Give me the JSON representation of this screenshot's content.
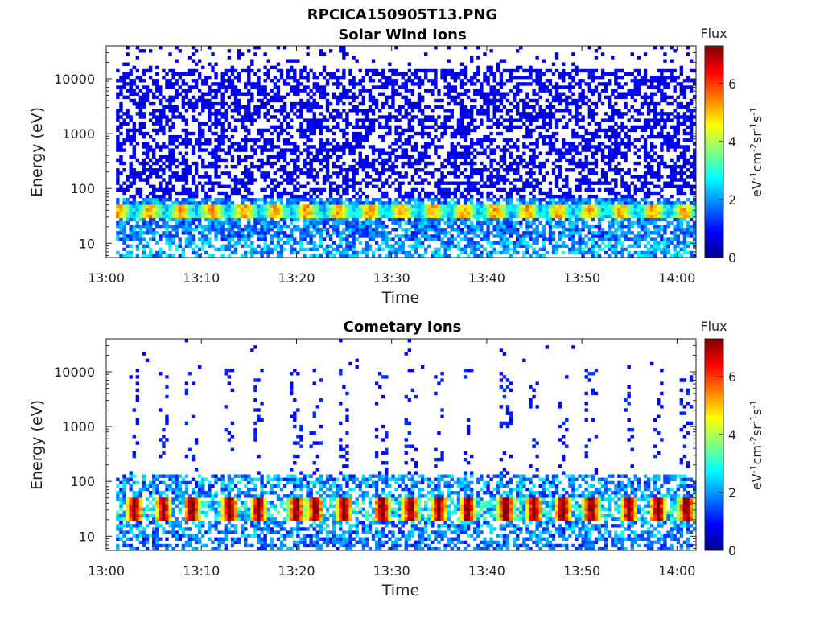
{
  "figure": {
    "title": "RPCICA150905T13.PNG"
  },
  "chart_data": [
    {
      "type": "heatmap",
      "title": "Solar Wind Ions",
      "xlabel": "Time",
      "ylabel": "Energy (eV)",
      "x_range": [
        "13:00",
        "14:02"
      ],
      "x_ticks": [
        "13:00",
        "13:10",
        "13:20",
        "13:30",
        "13:40",
        "13:50",
        "14:00"
      ],
      "y_scale": "log",
      "y_range": [
        5.5,
        40000
      ],
      "y_ticks": [
        10,
        100,
        1000,
        10000
      ],
      "y_tick_labels": [
        "10",
        "100",
        "1000",
        "10000"
      ],
      "colorbar": {
        "title": "Flux",
        "label": "eV-1cm-2sr-1s-1",
        "range": [
          0,
          7.3
        ],
        "ticks": [
          0,
          2,
          4,
          6
        ],
        "tick_labels": [
          "0",
          "2",
          "4",
          "6"
        ],
        "colormap": "jet"
      },
      "data_start": "13:01",
      "band_energy_eV": 38,
      "band_peak_flux": 5,
      "background_flux": 1
    },
    {
      "type": "heatmap",
      "title": "Cometary Ions",
      "xlabel": "Time",
      "ylabel": "Energy (eV)",
      "x_range": [
        "13:00",
        "14:02"
      ],
      "x_ticks": [
        "13:00",
        "13:10",
        "13:20",
        "13:30",
        "13:40",
        "13:50",
        "14:00"
      ],
      "y_scale": "log",
      "y_range": [
        5.5,
        40000
      ],
      "y_ticks": [
        10,
        100,
        1000,
        10000
      ],
      "y_tick_labels": [
        "10",
        "100",
        "1000",
        "10000"
      ],
      "colorbar": {
        "title": "Flux",
        "label": "eV-1cm-2sr-1s-1",
        "range": [
          0,
          7.3
        ],
        "ticks": [
          0,
          2,
          4,
          6
        ],
        "tick_labels": [
          "0",
          "2",
          "4",
          "6"
        ],
        "colormap": "jet"
      },
      "data_start": "13:01",
      "band_energy_eV": 30,
      "band_peak_flux": 6.8,
      "burst_times": [
        "13:03",
        "13:06",
        "13:09",
        "13:13",
        "13:16",
        "13:20",
        "13:22",
        "13:25",
        "13:29",
        "13:32",
        "13:35",
        "13:38",
        "13:42",
        "13:45",
        "13:48",
        "13:51",
        "13:55",
        "13:58",
        "14:01"
      ],
      "background_flux": 1
    }
  ]
}
